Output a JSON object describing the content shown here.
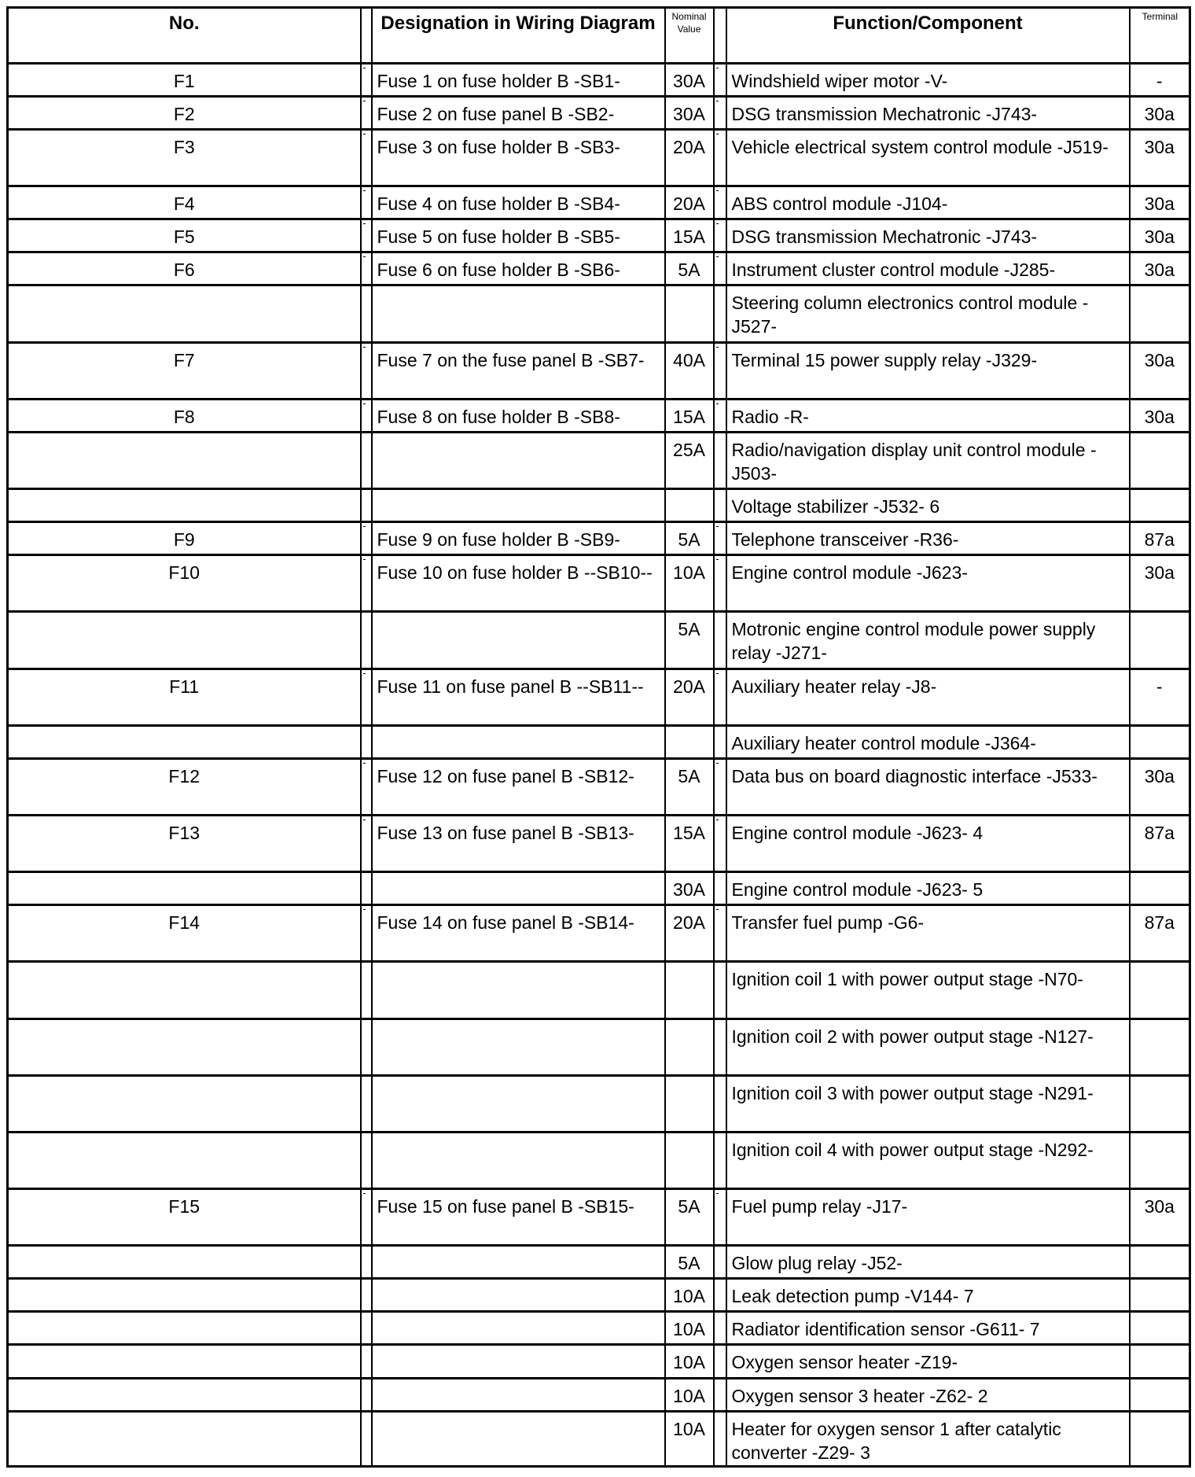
{
  "headers": {
    "no": "No.",
    "designation": "Designation in Wiring Diagram",
    "nominal_value": "Nominal Value",
    "function": "Function/Component",
    "terminal": "Terminal"
  },
  "rows": [
    {
      "no": "F1",
      "designation": "Fuse 1 on fuse holder B -SB1-",
      "value": "30A",
      "function": "Windshield wiper motor -V-",
      "terminal": "-"
    },
    {
      "no": "F2",
      "designation": "Fuse 2 on fuse panel B -SB2-",
      "value": "30A",
      "function": "DSG transmission Mechatronic -J743-",
      "terminal": "30a"
    },
    {
      "no": "F3",
      "designation": "Fuse 3 on fuse holder B -SB3-",
      "value": "20A",
      "function": "Vehicle electrical system control module -J519-",
      "terminal": "30a"
    },
    {
      "no": "F4",
      "designation": "Fuse 4 on fuse holder B -SB4-",
      "value": "20A",
      "function": "ABS control module -J104-",
      "terminal": "30a"
    },
    {
      "no": "F5",
      "designation": "Fuse 5 on fuse holder B -SB5-",
      "value": "15A",
      "function": "DSG transmission Mechatronic -J743-",
      "terminal": "30a"
    },
    {
      "no": "F6",
      "designation": "Fuse 6 on fuse holder B -SB6-",
      "value": "5A",
      "function": "Instrument cluster control module -J285-",
      "terminal": "30a"
    },
    {
      "no": "",
      "designation": "",
      "value": "",
      "function": "Steering column electronics control module -J527-",
      "terminal": ""
    },
    {
      "no": "F7",
      "designation": "Fuse 7 on the fuse panel B -SB7-",
      "value": "40A",
      "function": "Terminal 15 power supply relay -J329-",
      "terminal": "30a"
    },
    {
      "no": "F8",
      "designation": "Fuse 8 on fuse holder B -SB8-",
      "value": "15A",
      "function": "Radio -R-",
      "terminal": "30a"
    },
    {
      "no": "",
      "designation": "",
      "value": "25A",
      "function": "Radio/navigation display unit control module -J503-",
      "terminal": ""
    },
    {
      "no": "",
      "designation": "",
      "value": "",
      "function": "Voltage stabilizer -J532- 6",
      "terminal": ""
    },
    {
      "no": "F9",
      "designation": "Fuse 9 on fuse holder B -SB9-",
      "value": "5A",
      "function": "Telephone transceiver -R36-",
      "terminal": "87a"
    },
    {
      "no": "F10",
      "designation": "Fuse 10 on fuse holder B --SB10--",
      "value": "10A",
      "function": "Engine control module -J623-",
      "terminal": "30a"
    },
    {
      "no": "",
      "designation": "",
      "value": "5A",
      "function": "Motronic engine control module power supply relay -J271-",
      "terminal": ""
    },
    {
      "no": "F11",
      "designation": "Fuse 11 on fuse panel B --SB11--",
      "value": "20A",
      "function": "Auxiliary heater relay -J8-",
      "terminal": "-"
    },
    {
      "no": "",
      "designation": "",
      "value": "",
      "function": "Auxiliary heater control module -J364-",
      "terminal": ""
    },
    {
      "no": "F12",
      "designation": "Fuse 12 on fuse panel B -SB12-",
      "value": "5A",
      "function": "Data bus on board diagnostic interface -J533-",
      "terminal": "30a"
    },
    {
      "no": "F13",
      "designation": "Fuse 13 on fuse panel B -SB13-",
      "value": "15A",
      "function": "Engine control module -J623- 4",
      "terminal": "87a"
    },
    {
      "no": "",
      "designation": "",
      "value": "30A",
      "function": "Engine control module -J623- 5",
      "terminal": ""
    },
    {
      "no": "F14",
      "designation": "Fuse 14 on fuse panel B -SB14-",
      "value": "20A",
      "function": "Transfer fuel pump -G6-",
      "terminal": "87a"
    },
    {
      "no": "",
      "designation": "",
      "value": "",
      "function": "Ignition coil 1 with power output stage -N70-",
      "terminal": ""
    },
    {
      "no": "",
      "designation": "",
      "value": "",
      "function": "Ignition coil 2 with power output stage -N127-",
      "terminal": ""
    },
    {
      "no": "",
      "designation": "",
      "value": "",
      "function": "Ignition coil 3 with power output stage -N291-",
      "terminal": ""
    },
    {
      "no": "",
      "designation": "",
      "value": "",
      "function": "Ignition coil 4 with power output stage -N292-",
      "terminal": ""
    },
    {
      "no": "F15",
      "designation": "Fuse 15 on fuse panel B -SB15-",
      "value": "5A",
      "function": "Fuel pump relay -J17-",
      "terminal": "30a"
    },
    {
      "no": "",
      "designation": "",
      "value": "5A",
      "function": "Glow plug relay -J52-",
      "terminal": ""
    },
    {
      "no": "",
      "designation": "",
      "value": "10A",
      "function": "Leak detection pump -V144- 7",
      "terminal": ""
    },
    {
      "no": "",
      "designation": "",
      "value": "10A",
      "function": "Radiator identification sensor -G611- 7",
      "terminal": ""
    },
    {
      "no": "",
      "designation": "",
      "value": "10A",
      "function": "Oxygen sensor heater -Z19-",
      "terminal": ""
    },
    {
      "no": "",
      "designation": "",
      "value": "10A",
      "function": "Oxygen sensor 3 heater -Z62- 2",
      "terminal": ""
    },
    {
      "no": "",
      "designation": "",
      "value": "10A",
      "function": "Heater for oxygen sensor 1 after catalytic converter -Z29- 3",
      "terminal": ""
    }
  ]
}
